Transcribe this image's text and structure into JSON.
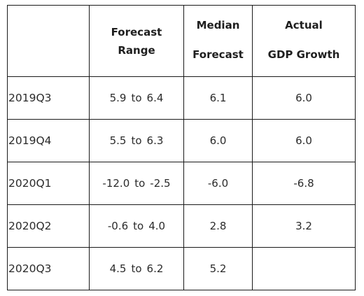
{
  "table": {
    "headers": {
      "quarter": "",
      "range_line1": "Forecast",
      "range_line2": "Range",
      "median_line1": "Median",
      "median_line2": "Forecast",
      "actual_line1": "Actual",
      "actual_line2": "GDP Growth"
    },
    "rows": [
      {
        "quarter": "2019Q3",
        "range_low": "5.9",
        "range_sep": "to",
        "range_high": "6.4",
        "median": "6.1",
        "actual": "6.0"
      },
      {
        "quarter": "2019Q4",
        "range_low": "5.5",
        "range_sep": "to",
        "range_high": "6.3",
        "median": "6.0",
        "actual": "6.0"
      },
      {
        "quarter": "2020Q1",
        "range_low": "-12.0",
        "range_sep": "to",
        "range_high": "-2.5",
        "median": "-6.0",
        "actual": "-6.8"
      },
      {
        "quarter": "2020Q2",
        "range_low": "-0.6",
        "range_sep": "to",
        "range_high": "4.0",
        "median": "2.8",
        "actual": "3.2"
      },
      {
        "quarter": "2020Q3",
        "range_low": "4.5",
        "range_sep": "to",
        "range_high": "6.2",
        "median": "5.2",
        "actual": ""
      }
    ]
  }
}
